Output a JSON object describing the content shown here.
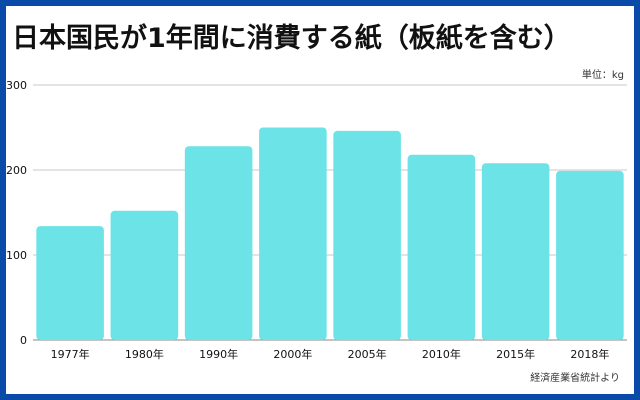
{
  "title": "日本国民が1年間に消費する紙（板紙を含む）",
  "unit_label": "単位：kg",
  "source_note": "経済産業省統計より",
  "colors": {
    "bar": "#6ce3e6",
    "frame": "#0a4aa8",
    "grid": "#c8c8c8"
  },
  "chart_data": {
    "type": "bar",
    "title": "日本国民が1年間に消費する紙（板紙を含む）",
    "categories": [
      "1977年",
      "1980年",
      "1990年",
      "2000年",
      "2005年",
      "2010年",
      "2015年",
      "2018年"
    ],
    "values": [
      134,
      152,
      228,
      250,
      246,
      218,
      208,
      199
    ],
    "ylim": [
      0,
      300
    ],
    "yticks": [
      0,
      100,
      200,
      300
    ],
    "xlabel": "",
    "ylabel": "",
    "grid": true,
    "legend": "none"
  }
}
